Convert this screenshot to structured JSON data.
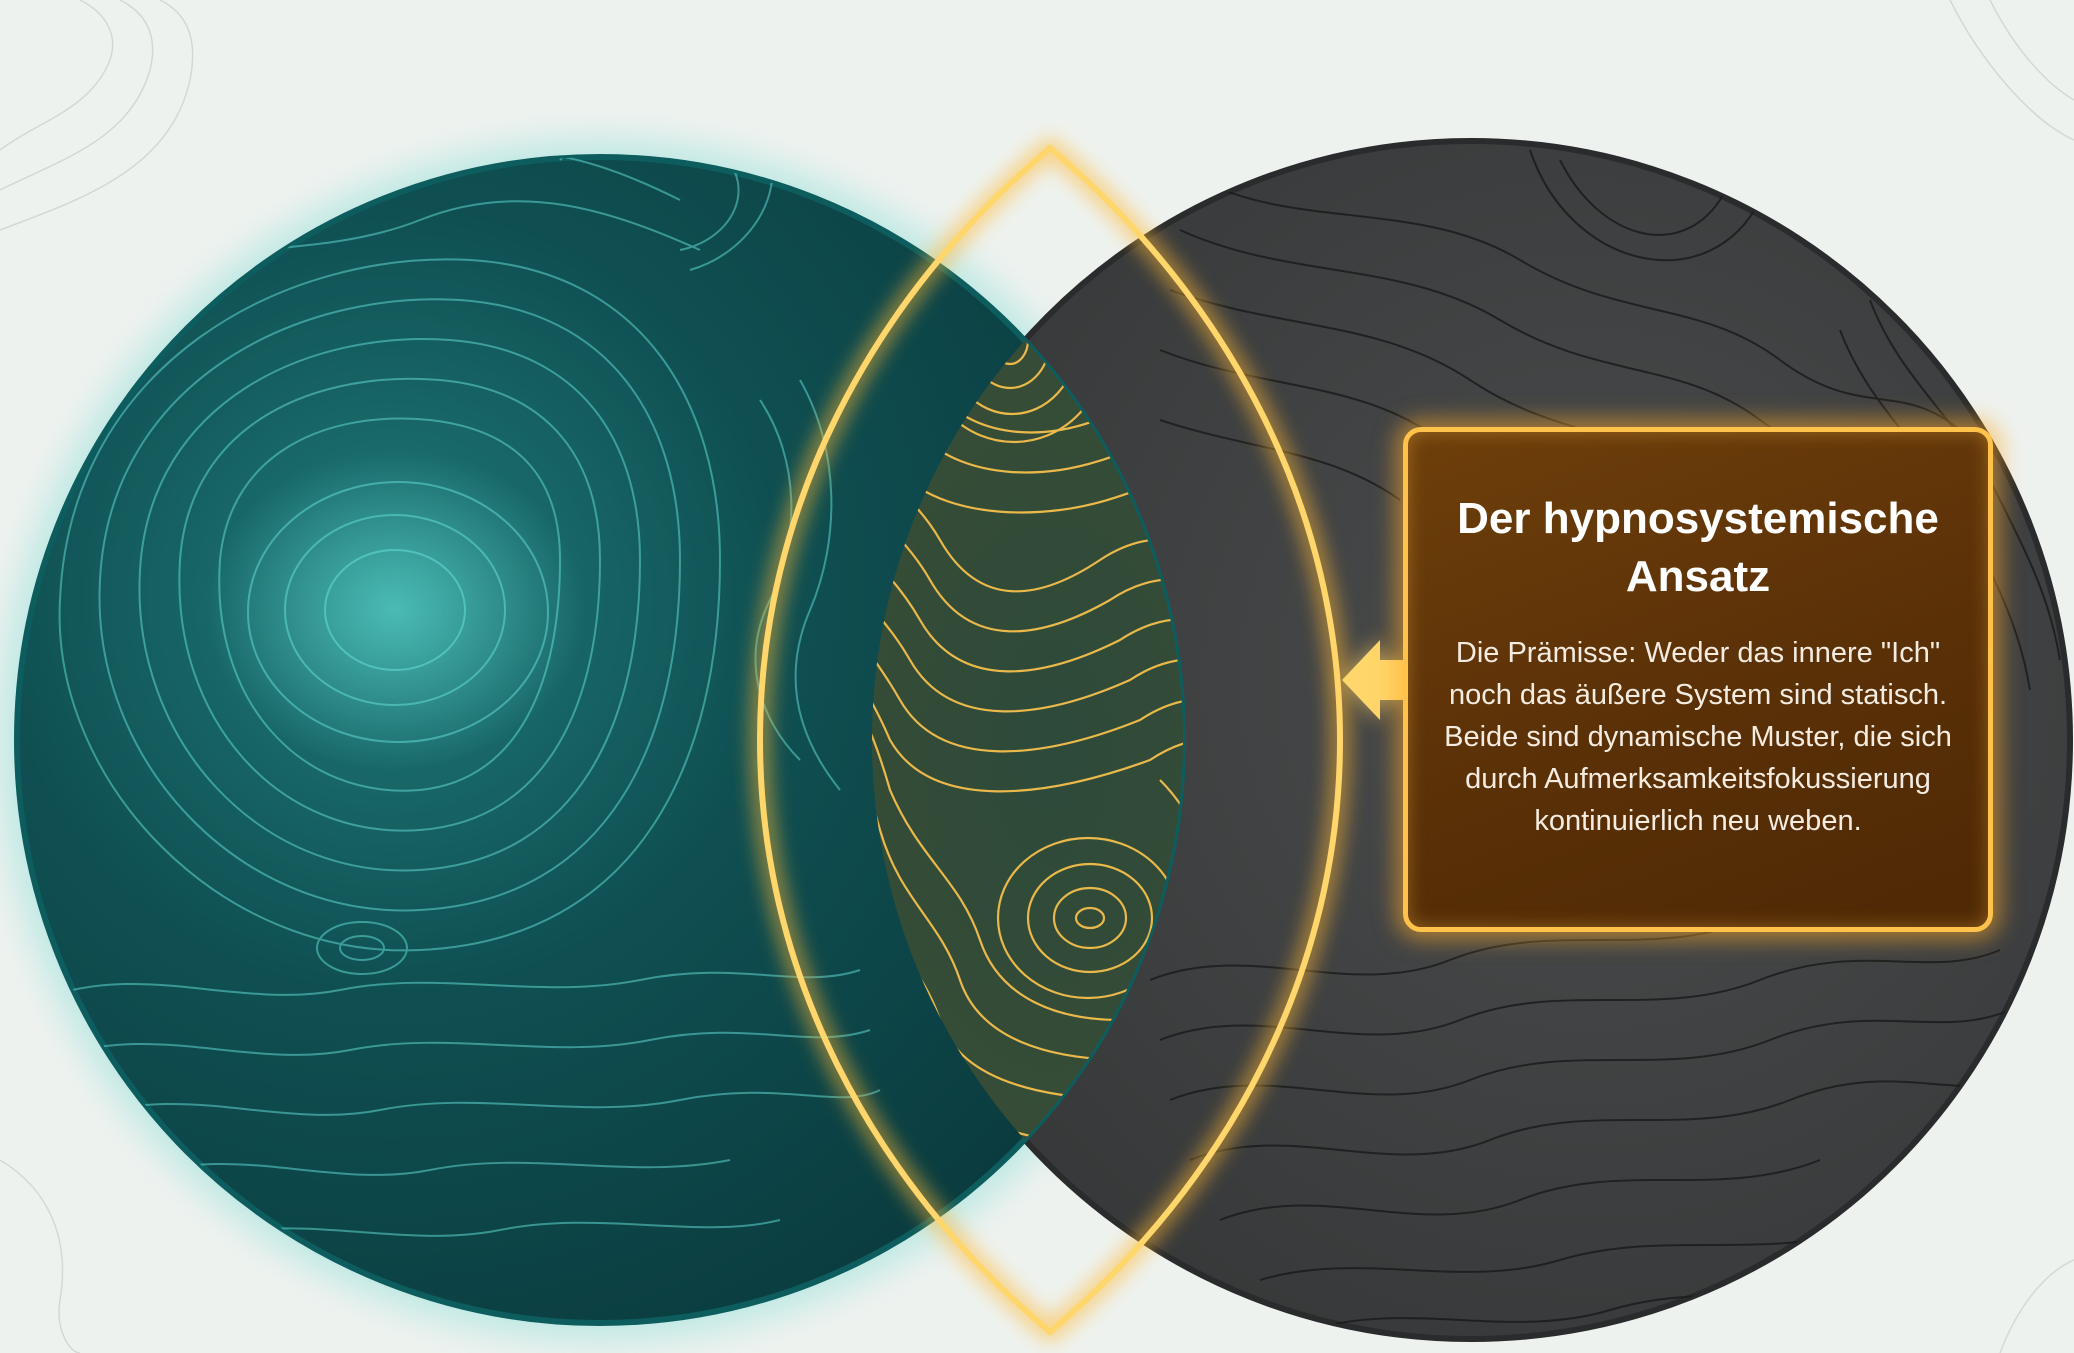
{
  "callout": {
    "title": "Der hypnosystemische Ansatz",
    "text": "Die Prämisse: Weder das innere \"Ich\" noch das äußere System sind statisch. Beide sind dynamische Muster, die sich durch Aufmerksamkeitsfokussierung kontinuierlich neu weben."
  },
  "colors": {
    "left_circle": "#0f4a4c",
    "left_lines": "#5fd6cf",
    "right_circle": "#3b3d3e",
    "right_lines": "#1e1f20",
    "intersection": "#ffc54d",
    "callout_border": "#ffc24a",
    "callout_fill": "#5a3007"
  },
  "icons": {
    "pointer": "arrow-left-icon"
  }
}
